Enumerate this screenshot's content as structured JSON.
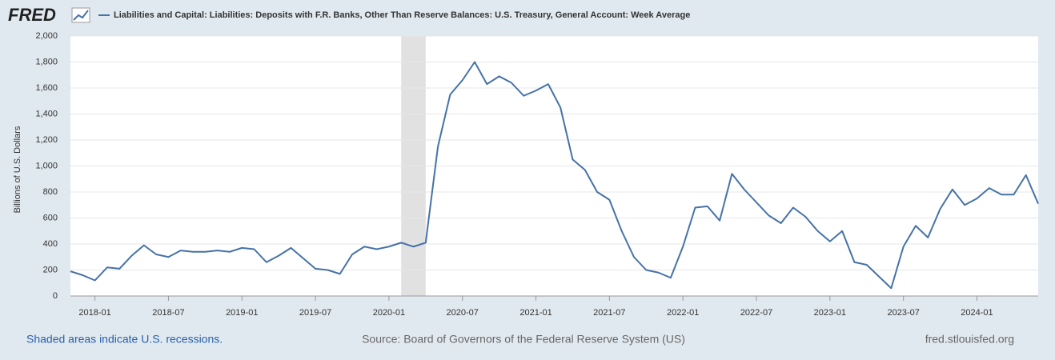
{
  "chart_data": {
    "type": "line",
    "logo": "FRED",
    "y_label": "Billions of U.S. Dollars",
    "footer_left": "Shaded areas indicate U.S. recessions.",
    "footer_center": "Source: Board of Governors of the Federal Reserve System (US)",
    "footer_right": "fred.stlouisfed.org",
    "recession_shading": {
      "start": "2020-02",
      "end": "2020-04",
      "color": "#e1e1e1"
    },
    "x": [
      "2017-11",
      "2017-12",
      "2018-01",
      "2018-02",
      "2018-03",
      "2018-04",
      "2018-05",
      "2018-06",
      "2018-07",
      "2018-08",
      "2018-09",
      "2018-10",
      "2018-11",
      "2018-12",
      "2019-01",
      "2019-02",
      "2019-03",
      "2019-04",
      "2019-05",
      "2019-06",
      "2019-07",
      "2019-08",
      "2019-09",
      "2019-10",
      "2019-11",
      "2019-12",
      "2020-01",
      "2020-02",
      "2020-03",
      "2020-04",
      "2020-05",
      "2020-06",
      "2020-07",
      "2020-08",
      "2020-09",
      "2020-10",
      "2020-11",
      "2020-12",
      "2021-01",
      "2021-02",
      "2021-03",
      "2021-04",
      "2021-05",
      "2021-06",
      "2021-07",
      "2021-08",
      "2021-09",
      "2021-10",
      "2021-11",
      "2021-12",
      "2022-01",
      "2022-02",
      "2022-03",
      "2022-04",
      "2022-05",
      "2022-06",
      "2022-07",
      "2022-08",
      "2022-09",
      "2022-10",
      "2022-11",
      "2022-12",
      "2023-01",
      "2023-02",
      "2023-03",
      "2023-04",
      "2023-05",
      "2023-06",
      "2023-07",
      "2023-08",
      "2023-09",
      "2023-10",
      "2023-11",
      "2023-12",
      "2024-01",
      "2024-02",
      "2024-03",
      "2024-04",
      "2024-05",
      "2024-06"
    ],
    "series": [
      {
        "name": "Liabilities and Capital: Liabilities: Deposits with F.R. Banks, Other Than Reserve Balances: U.S. Treasury, General Account: Week Average",
        "color": "#4572a7",
        "values": [
          190,
          160,
          120,
          220,
          210,
          310,
          390,
          320,
          300,
          350,
          340,
          340,
          350,
          340,
          370,
          360,
          260,
          310,
          370,
          290,
          210,
          200,
          170,
          320,
          380,
          360,
          380,
          410,
          380,
          410,
          1150,
          1550,
          1660,
          1800,
          1630,
          1690,
          1640,
          1540,
          1580,
          1630,
          1450,
          1050,
          970,
          800,
          740,
          500,
          300,
          200,
          180,
          140,
          380,
          680,
          690,
          580,
          940,
          820,
          720,
          620,
          560,
          680,
          610,
          500,
          420,
          500,
          260,
          240,
          150,
          60,
          380,
          540,
          450,
          670,
          820,
          700,
          750,
          830,
          780,
          780,
          930,
          710
        ]
      }
    ],
    "xlim": [
      "2017-11",
      "2024-06"
    ],
    "xticks": [
      "2018-01",
      "2018-07",
      "2019-01",
      "2019-07",
      "2020-01",
      "2020-07",
      "2021-01",
      "2021-07",
      "2022-01",
      "2022-07",
      "2023-01",
      "2023-07",
      "2024-01"
    ],
    "ylim": [
      0,
      2000
    ],
    "yticks": [
      0,
      200,
      400,
      600,
      800,
      {
        "value": 1000,
        "label": "1,000"
      },
      {
        "value": 1200,
        "label": "1,200"
      },
      {
        "value": 1400,
        "label": "1,400"
      },
      {
        "value": 1600,
        "label": "1,600"
      },
      {
        "value": 1800,
        "label": "1,800"
      },
      {
        "value": 2000,
        "label": "2,000"
      }
    ],
    "grid": true
  }
}
